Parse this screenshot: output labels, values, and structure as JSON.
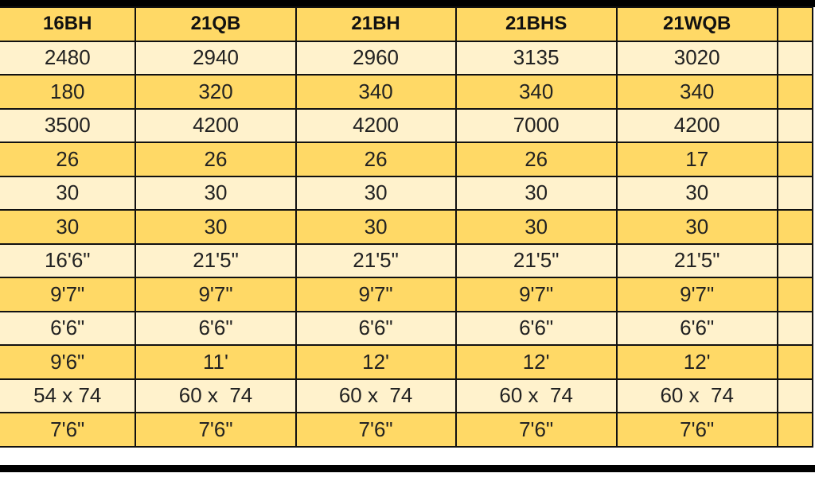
{
  "colors": {
    "header": "#FFD966",
    "row_light": "#FFF2CC",
    "row_gold": "#FFD966",
    "border": "#111111"
  },
  "headers": [
    "16BH",
    "21QB",
    "21BH",
    "21BHS",
    "21WQB",
    ""
  ],
  "rows": [
    [
      "2480",
      "2940",
      "2960",
      "3135",
      "3020",
      ""
    ],
    [
      "180",
      "320",
      "340",
      "340",
      "340",
      ""
    ],
    [
      "3500",
      "4200",
      "4200",
      "7000",
      "4200",
      ""
    ],
    [
      "26",
      "26",
      "26",
      "26",
      "17",
      ""
    ],
    [
      "30",
      "30",
      "30",
      "30",
      "30",
      ""
    ],
    [
      "30",
      "30",
      "30",
      "30",
      "30",
      ""
    ],
    [
      "16'6\"",
      "21'5\"",
      "21'5\"",
      "21'5\"",
      "21'5\"",
      ""
    ],
    [
      "9'7\"",
      "9'7\"",
      "9'7\"",
      "9'7\"",
      "9'7\"",
      ""
    ],
    [
      "6'6\"",
      "6'6\"",
      "6'6\"",
      "6'6\"",
      "6'6\"",
      ""
    ],
    [
      "9'6\"",
      "11'",
      "12'",
      "12'",
      "12'",
      ""
    ],
    [
      "54 x 74",
      "60 x  74",
      "60 x  74",
      "60 x  74",
      "60 x  74",
      ""
    ],
    [
      "7'6\"",
      "7'6\"",
      "7'6\"",
      "7'6\"",
      "7'6\"",
      ""
    ]
  ]
}
